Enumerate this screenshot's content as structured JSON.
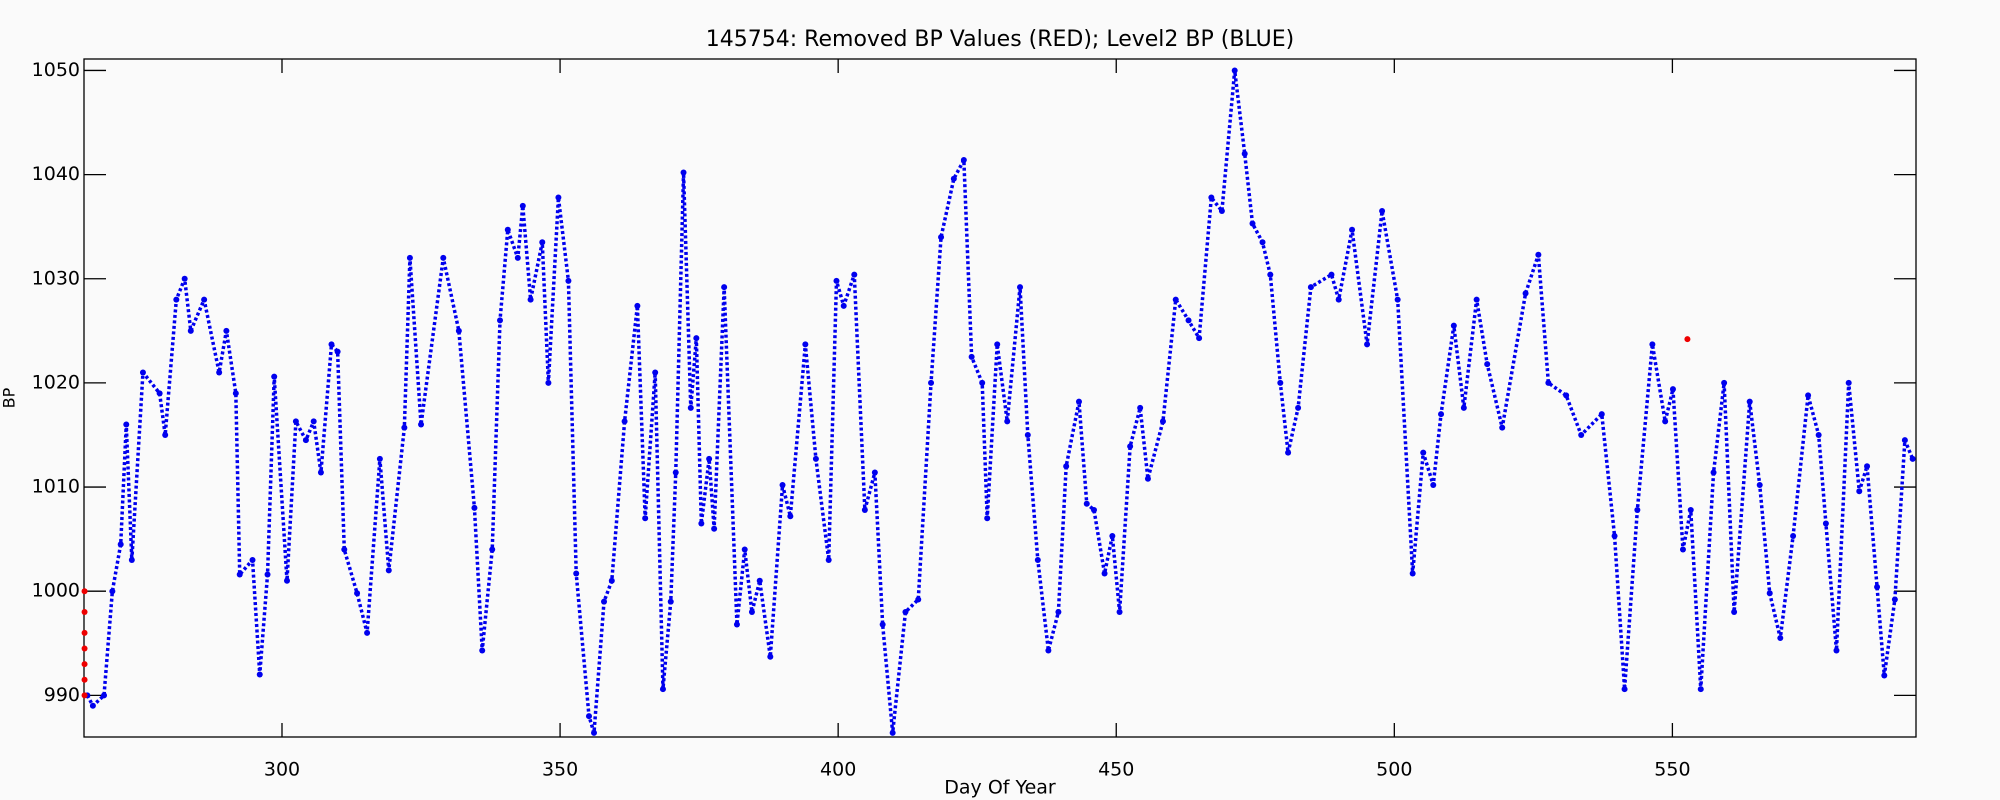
{
  "chart_data": {
    "type": "scatter",
    "title": "145754: Removed BP Values (RED); Level2 BP (BLUE)",
    "xlabel": "Day Of Year",
    "ylabel": "BP",
    "xlim": [
      264.4,
      593.8
    ],
    "ylim": [
      986,
      1051.1
    ],
    "xticks": [
      300,
      350,
      400,
      450,
      500,
      550
    ],
    "yticks": [
      990,
      1000,
      1010,
      1020,
      1030,
      1040,
      1050
    ],
    "series": [
      {
        "color": "#0000ee",
        "x": [
          265,
          266,
          268,
          269.5,
          271,
          272,
          273,
          275,
          278,
          279,
          281,
          282.5,
          283.6,
          286,
          288.7,
          290,
          291.7,
          292.4,
          294.7,
          296,
          297.4,
          298.6,
          300.9,
          302.5,
          304.3,
          305.7,
          307,
          308.9,
          310,
          311.2,
          313.5,
          315.3,
          317.6,
          319.2,
          322,
          323,
          325,
          329,
          331.8,
          334.6,
          336,
          337.8,
          339.2,
          340.6,
          342.4,
          343.3,
          344.7,
          346.8,
          347.9,
          349.7,
          351.5,
          352.9,
          355.2,
          356.1,
          357.9,
          359.3,
          361.6,
          363.9,
          365.3,
          367.1,
          368.5,
          369.9,
          370.8,
          372.2,
          373.5,
          374.5,
          375.4,
          376.8,
          377.7,
          379.5,
          381.8,
          383.2,
          384.5,
          385.9,
          387.8,
          390,
          391.4,
          394.1,
          396,
          398.3,
          399.7,
          401,
          402.9,
          404.8,
          406.6,
          408,
          409.8,
          412.1,
          414.4,
          416.7,
          418.5,
          420.8,
          422.6,
          424,
          425.9,
          426.8,
          428.6,
          430.4,
          432.7,
          434.1,
          435.9,
          437.8,
          439.6,
          441,
          443.3,
          444.7,
          446,
          447.9,
          449.3,
          450.6,
          452.5,
          454.3,
          455.7,
          458.4,
          460.7,
          463,
          464.9,
          467.1,
          469,
          471.3,
          473.1,
          474.5,
          476.3,
          477.7,
          479.5,
          480.9,
          482.7,
          485,
          488.7,
          490,
          492.4,
          495.1,
          497.8,
          500.6,
          503.3,
          505.2,
          507,
          508.4,
          510.7,
          512.5,
          514.8,
          516.7,
          519.4,
          523.6,
          525.9,
          527.7,
          530.9,
          533.6,
          537.3,
          539.6,
          541.4,
          543.7,
          546.4,
          548.7,
          550.1,
          551.9,
          553.3,
          555.1,
          557.4,
          559.3,
          561.1,
          563.9,
          565.7,
          567.5,
          569.4,
          571.7,
          574.4,
          576.3,
          577.6,
          579.5,
          581.7,
          583.6,
          585,
          586.8,
          588.1,
          590,
          591.8,
          593.2
        ],
        "values": [
          990,
          989,
          990,
          1000,
          1004.5,
          1016,
          1003,
          1021,
          1019,
          1015,
          1028,
          1030,
          1025,
          1028,
          1021,
          1025,
          1019,
          1001.6,
          1003,
          992,
          1001.6,
          1020.6,
          1001,
          1016.3,
          1014.5,
          1016.3,
          1011.4,
          1023.7,
          1023,
          1004,
          999.8,
          996,
          1012.7,
          1002,
          1015.7,
          1032,
          1016,
          1032,
          1025,
          1008,
          994.3,
          1004,
          1026,
          1034.7,
          1032,
          1037,
          1028,
          1033.5,
          1020,
          1037.8,
          1029.8,
          1001.7,
          988,
          986.4,
          999,
          1001,
          1016.3,
          1027.4,
          1007,
          1021,
          990.6,
          999,
          1011.4,
          1040.2,
          1017.6,
          1024.3,
          1006.5,
          1012.7,
          1006,
          1029.2,
          996.8,
          1004,
          998,
          1001,
          993.7,
          1010.2,
          1007.2,
          1023.7,
          1012.7,
          1003,
          1029.8,
          1027.4,
          1030.4,
          1007.8,
          1011.4,
          996.8,
          986.4,
          998,
          999.2,
          1020,
          1034,
          1039.6,
          1041.4,
          1022.5,
          1020,
          1007,
          1023.7,
          1016.3,
          1029.2,
          1015,
          1003,
          994.3,
          998,
          1012,
          1018.2,
          1008.4,
          1007.8,
          1001.7,
          1005.3,
          998,
          1013.9,
          1017.6,
          1010.8,
          1016.3,
          1028,
          1026,
          1024.3,
          1037.8,
          1036.5,
          1050,
          1042,
          1035.3,
          1033.5,
          1030.4,
          1020,
          1013.3,
          1017.6,
          1029.2,
          1030.4,
          1028,
          1034.7,
          1023.7,
          1036.5,
          1028,
          1001.7,
          1013.3,
          1010.2,
          1017,
          1025.5,
          1017.6,
          1028,
          1021.8,
          1015.7,
          1028.6,
          1032.3,
          1020,
          1018.8,
          1015,
          1017,
          1005.3,
          990.6,
          1007.8,
          1023.7,
          1016.3,
          1019.4,
          1004,
          1007.8,
          990.6,
          1011.4,
          1020,
          998,
          1018.2,
          1010.2,
          999.8,
          995.5,
          1005.3,
          1018.8,
          1015,
          1006.5,
          994.3,
          1020,
          1009.6,
          1012,
          1000.4,
          991.9,
          999.2,
          1014.5,
          1012.7
        ]
      },
      {
        "color": "#ee0000",
        "x": [
          264.5,
          264.5,
          264.5,
          264.5,
          264.5,
          264.5,
          264.5,
          552.7
        ],
        "values": [
          990,
          991.5,
          993,
          994.5,
          996,
          998,
          1000,
          1024.2
        ]
      }
    ]
  }
}
